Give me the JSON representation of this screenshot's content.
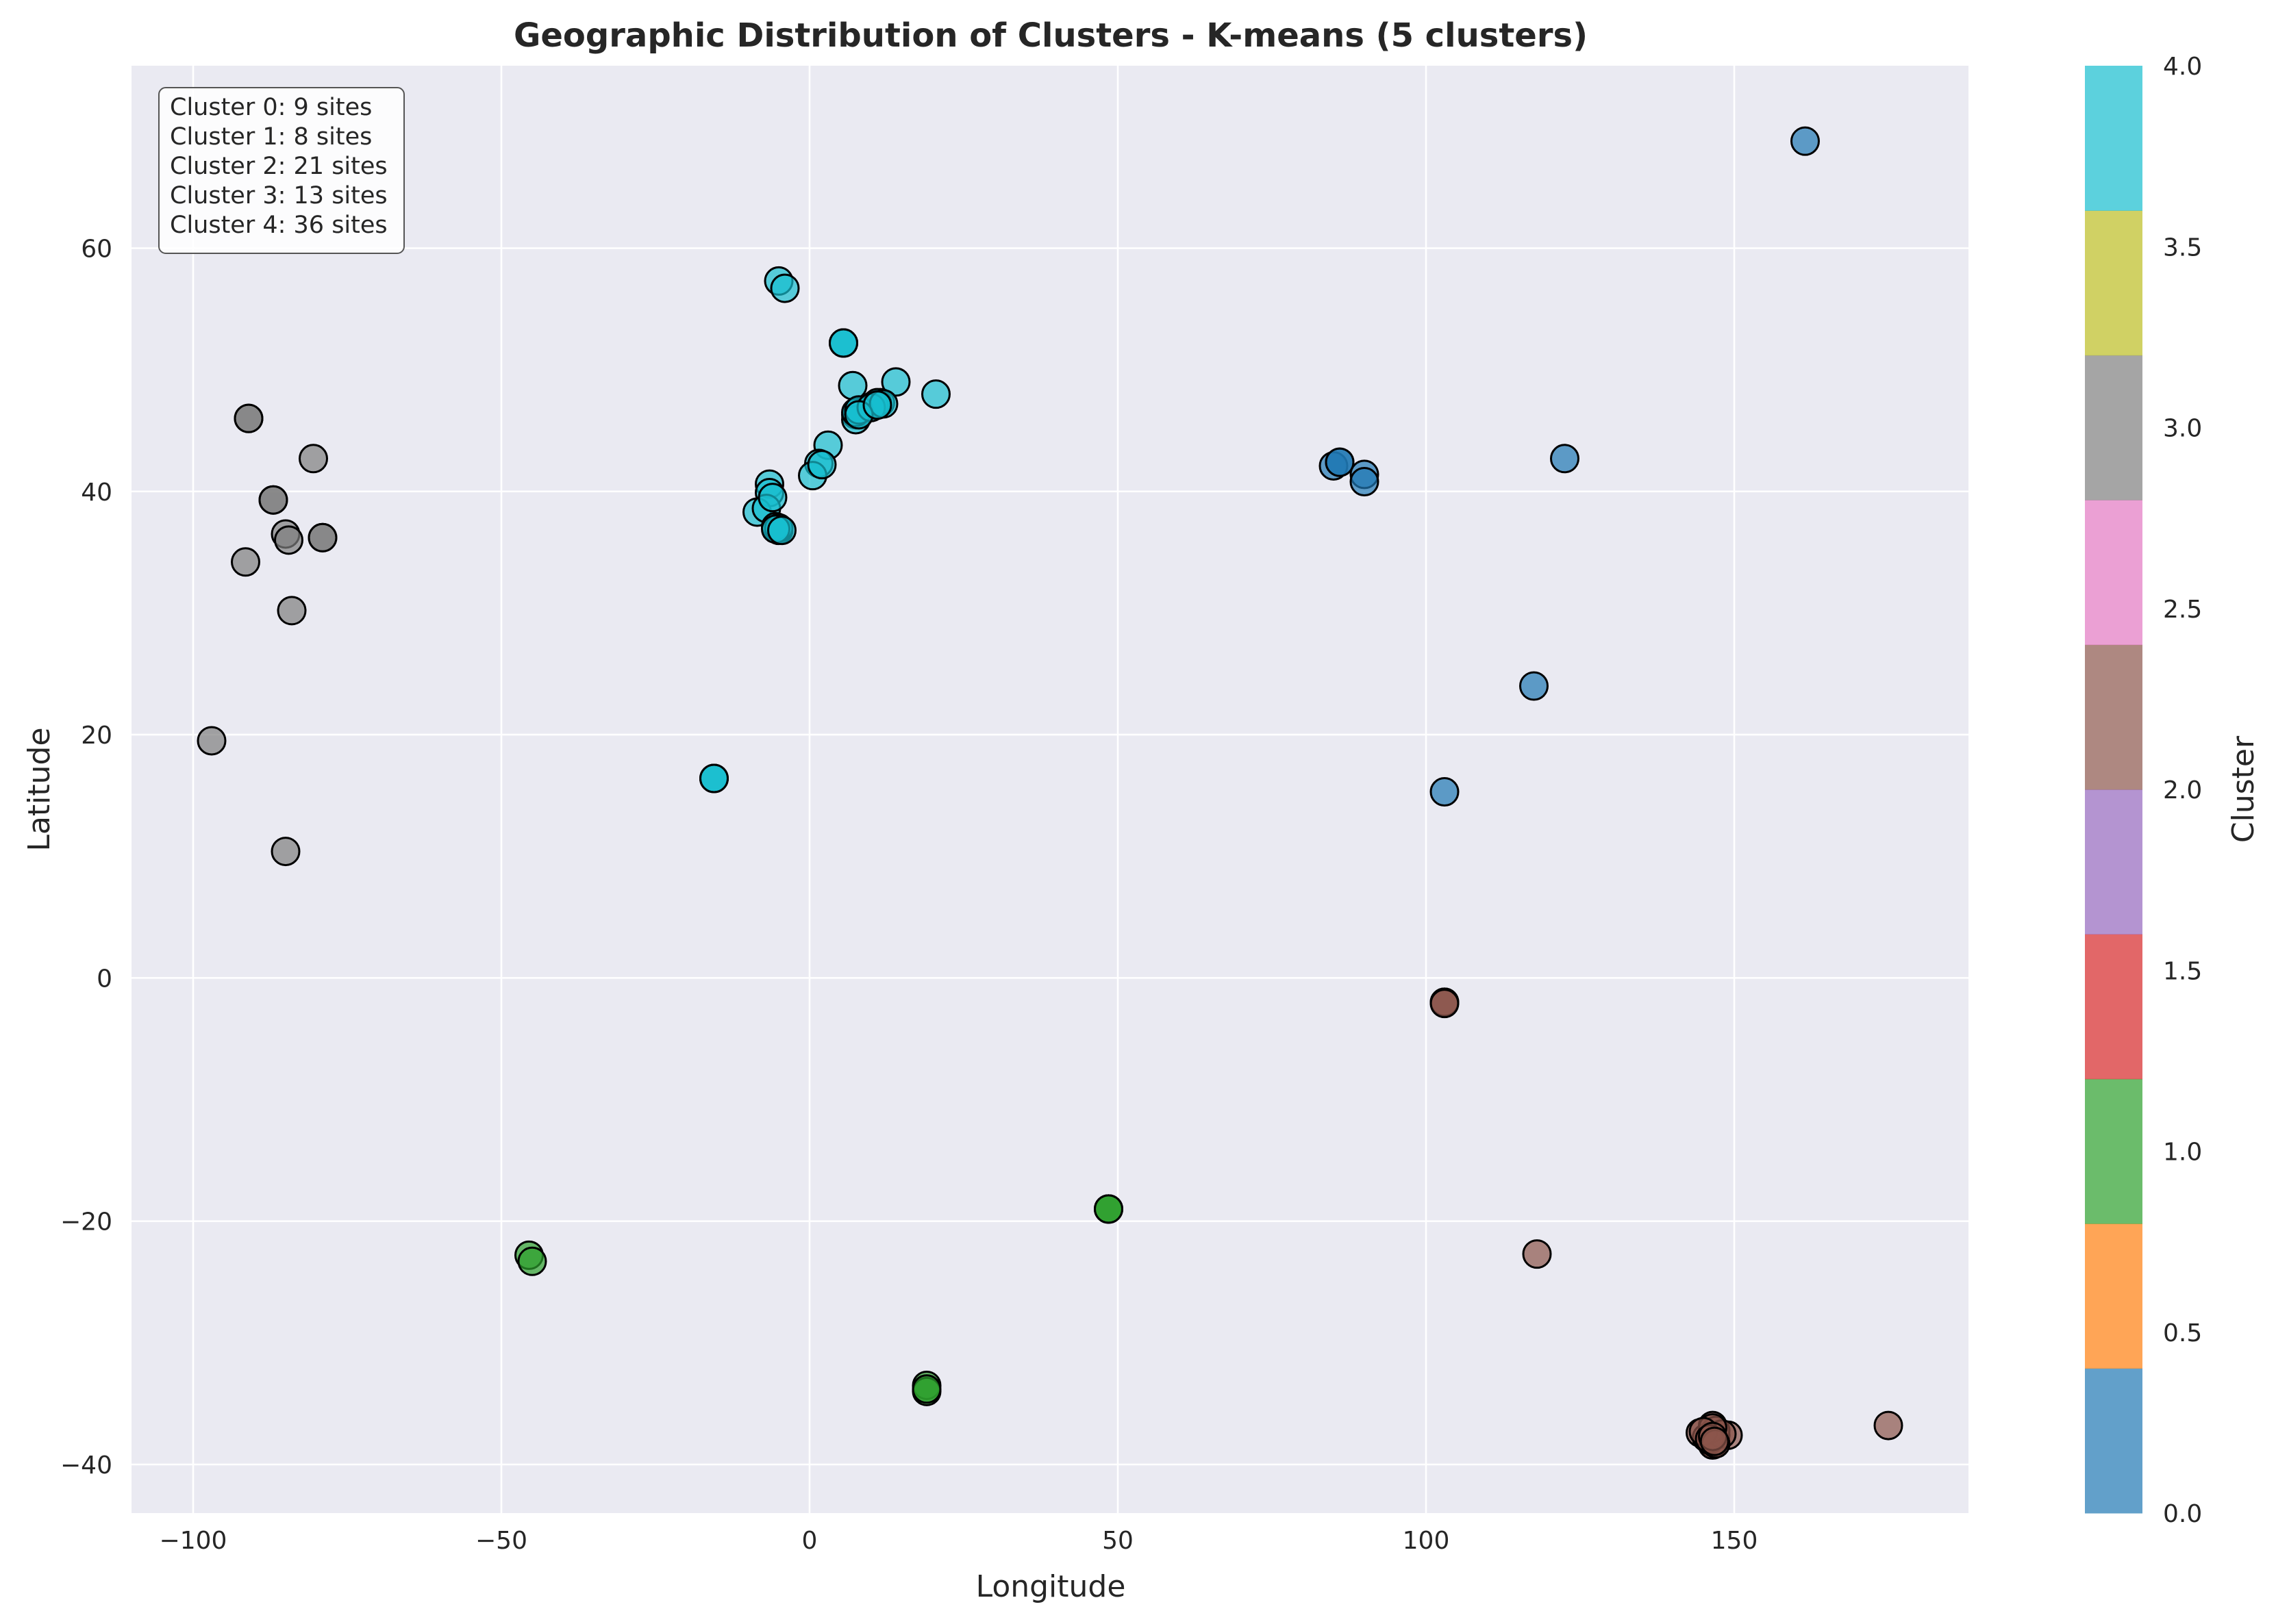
{
  "chart_data": {
    "type": "scatter",
    "title": "Geographic Distribution of Clusters - K-means (5 clusters)",
    "xlabel": "Longitude",
    "ylabel": "Latitude",
    "xlim": [
      -110,
      188
    ],
    "ylim": [
      -44,
      75
    ],
    "xticks": [
      -100,
      -50,
      0,
      50,
      100,
      150
    ],
    "yticks": [
      -40,
      -20,
      0,
      20,
      40,
      60
    ],
    "xtick_labels": [
      "−100",
      "−50",
      "0",
      "50",
      "100",
      "150"
    ],
    "ytick_labels": [
      "−40",
      "−20",
      "0",
      "20",
      "40",
      "60"
    ],
    "grid": true,
    "colorbar": {
      "label": "Cluster",
      "range": [
        0,
        4
      ],
      "ticks": [
        0.0,
        0.5,
        1.0,
        1.5,
        2.0,
        2.5,
        3.0,
        3.5,
        4.0
      ],
      "tick_labels": [
        "0.0",
        "0.5",
        "1.0",
        "1.5",
        "2.0",
        "2.5",
        "3.0",
        "3.5",
        "4.0"
      ],
      "colors": [
        "#1f77b4",
        "#ff7f0e",
        "#2ca02c",
        "#d62728",
        "#9467bd",
        "#8c564b",
        "#e377c2",
        "#7f7f7f",
        "#bcbd22",
        "#17becf"
      ]
    },
    "annotation": {
      "position": "top-left",
      "lines": [
        "Cluster 0: 9 sites",
        "Cluster 1: 8 sites",
        "Cluster 2: 21 sites",
        "Cluster 3: 13 sites",
        "Cluster 4: 36 sites"
      ]
    },
    "series": [
      {
        "cluster": 0,
        "color": "#1f77b4",
        "x": [
          161.5,
          122.5,
          85,
          86,
          90,
          90,
          117.5,
          103,
          86
        ],
        "y": [
          68.8,
          42.7,
          42.1,
          42.4,
          41.4,
          40.8,
          24,
          15.3,
          42.4
        ]
      },
      {
        "cluster": 1,
        "color": "#2ca02c",
        "x": [
          48.5,
          48.5,
          -45.5,
          -45,
          19,
          19,
          19,
          48.5
        ],
        "y": [
          -19,
          -19,
          -22.8,
          -23.3,
          -33.5,
          -34,
          -33.8,
          -19
        ]
      },
      {
        "cluster": 2,
        "color": "#8c564b",
        "x": [
          103,
          103,
          118,
          175,
          144.5,
          146.5,
          149,
          146.5,
          146.5,
          147,
          145.5,
          146,
          147,
          148,
          146.5,
          145,
          146,
          147,
          103,
          146.5,
          146.8
        ],
        "y": [
          -2,
          -2,
          -22.7,
          -36.8,
          -37.4,
          -36.8,
          -37.6,
          -38.2,
          -38.4,
          -37.6,
          -37.8,
          -38,
          -37.2,
          -37.5,
          -37,
          -37.3,
          -37.9,
          -38.3,
          -2.1,
          -37.7,
          -38.1
        ]
      },
      {
        "cluster": 3,
        "color": "#7f7f7f",
        "x": [
          -91,
          -80.5,
          -87,
          -85,
          -84.5,
          -79,
          -91.5,
          -84,
          -97,
          -85,
          -91,
          -87,
          -79
        ],
        "y": [
          46,
          42.7,
          39.3,
          36.5,
          36,
          36.2,
          34.2,
          30.2,
          19.5,
          10.4,
          46,
          39.3,
          36.2
        ]
      },
      {
        "cluster": 4,
        "color": "#17becf",
        "x": [
          -5,
          -4,
          5.5,
          5.5,
          7,
          14,
          20.5,
          11.5,
          10.5,
          7.5,
          7.5,
          3,
          1.5,
          0.5,
          -6.5,
          -6.5,
          -8.5,
          -7,
          -5.5,
          -5,
          -15.5,
          -15.5,
          11,
          7.5,
          8,
          10,
          12,
          2,
          -6,
          -5,
          -5.5,
          -4.5,
          5.5,
          -15.5,
          8,
          11
        ],
        "y": [
          57.3,
          56.7,
          52.2,
          52.2,
          48.7,
          49,
          48,
          47.3,
          47.1,
          46.3,
          45.9,
          43.8,
          42.3,
          41.3,
          40.6,
          39.9,
          38.3,
          38.6,
          37.1,
          36.8,
          16.4,
          16.4,
          47.3,
          46.5,
          46.7,
          46.9,
          47.2,
          42.2,
          39.5,
          37,
          36.9,
          36.8,
          52.2,
          16.4,
          46.3,
          47.1
        ]
      }
    ]
  }
}
